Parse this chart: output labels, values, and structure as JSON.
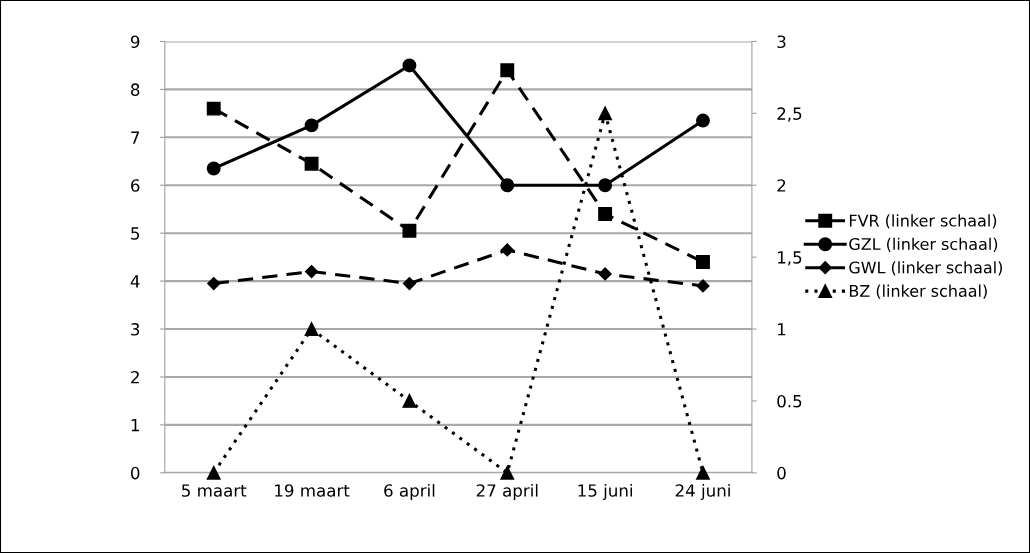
{
  "chart_data": {
    "type": "line",
    "categories": [
      "5 maart",
      "19 maart",
      "6 april",
      "27 april",
      "15 juni",
      "24 juni"
    ],
    "series": [
      {
        "name": "FVR (linker schaal)",
        "color": "#000000",
        "marker": "square",
        "line_style": "dashed",
        "values": [
          7.6,
          6.45,
          5.05,
          8.4,
          5.4,
          4.4
        ]
      },
      {
        "name": "GZL (linker schaal)",
        "color": "#000000",
        "marker": "circle",
        "line_style": "solid",
        "values": [
          6.35,
          7.25,
          8.5,
          6.0,
          6.0,
          7.35
        ]
      },
      {
        "name": "GWL (linker schaal)",
        "color": "#000000",
        "marker": "diamond",
        "line_style": "dashed",
        "values": [
          3.95,
          4.2,
          3.95,
          4.65,
          4.15,
          3.9
        ]
      },
      {
        "name": "BZ (linker schaal)",
        "color": "#000000",
        "marker": "triangle",
        "line_style": "dotted",
        "axis": "y2",
        "values": [
          0,
          1,
          0.5,
          0,
          2.5,
          0
        ]
      }
    ],
    "ylim": [
      0,
      9
    ],
    "yticks": [
      0,
      1,
      2,
      3,
      4,
      5,
      6,
      7,
      8,
      9
    ],
    "y2lim": [
      0,
      3
    ],
    "y2ticks": [
      0,
      {
        "value": 0.5,
        "label": "0.5"
      },
      1,
      {
        "value": 1.5,
        "label": "1,5"
      },
      2,
      {
        "value": 2.5,
        "label": "2,5"
      },
      3
    ],
    "grid": "y",
    "legend": "right"
  }
}
